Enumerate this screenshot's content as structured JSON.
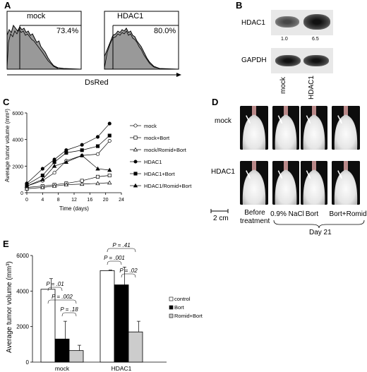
{
  "panel_letters": {
    "a": "A",
    "b": "B",
    "c": "C",
    "d": "D",
    "e": "E"
  },
  "panel_a": {
    "histograms": [
      {
        "name": "mock",
        "percent": "73.4%"
      },
      {
        "name": "HDAC1",
        "percent": "80.0%"
      }
    ],
    "xlabel": "DsRed"
  },
  "panel_b": {
    "blots": [
      {
        "name": "HDAC1",
        "quant": [
          "1.0",
          "6.5"
        ]
      },
      {
        "name": "GAPDH"
      }
    ],
    "lanes": [
      "mock",
      "HDAC1"
    ]
  },
  "panel_d": {
    "rows": [
      "mock",
      "HDAC1"
    ],
    "scale": "2 cm",
    "col_before": "Before\ntreatment",
    "cols_day": [
      "0.9% NaCl",
      "Bort",
      "Bort+Romid"
    ],
    "day_label": "Day 21"
  },
  "chart_data": [
    {
      "type": "line",
      "ylabel": "Average tumor volume (mm³)",
      "xlabel": "Time (days)",
      "xlim": [
        0,
        24
      ],
      "ylim": [
        0,
        6000
      ],
      "xticks": [
        0,
        4,
        8,
        12,
        16,
        20,
        24
      ],
      "yticks": [
        0,
        2000,
        4000,
        6000
      ],
      "series": [
        {
          "name": "mock",
          "marker": "open-circle",
          "x": [
            0,
            4,
            7,
            10,
            14,
            18,
            21
          ],
          "y": [
            500,
            900,
            1500,
            2400,
            2800,
            2900,
            3900
          ]
        },
        {
          "name": "mock+Bort",
          "marker": "open-square",
          "x": [
            0,
            4,
            7,
            10,
            14,
            18,
            21
          ],
          "y": [
            400,
            500,
            600,
            700,
            900,
            1200,
            1300
          ]
        },
        {
          "name": "mock/Romid+Bort",
          "marker": "open-triangle",
          "x": [
            0,
            4,
            7,
            10,
            14,
            18,
            21
          ],
          "y": [
            300,
            400,
            500,
            600,
            650,
            700,
            750
          ]
        },
        {
          "name": "HDAC1",
          "marker": "filled-circle",
          "x": [
            0,
            4,
            7,
            10,
            14,
            18,
            21
          ],
          "y": [
            700,
            1800,
            2500,
            3200,
            3600,
            4200,
            5200
          ]
        },
        {
          "name": "HDAC1+Bort",
          "marker": "filled-square",
          "x": [
            0,
            4,
            7,
            10,
            14,
            18,
            21
          ],
          "y": [
            600,
            1300,
            2300,
            3000,
            3200,
            3500,
            4300
          ]
        },
        {
          "name": "HDAC1/Romid+Bort",
          "marker": "filled-triangle",
          "x": [
            0,
            4,
            7,
            10,
            14,
            18,
            21
          ],
          "y": [
            500,
            1000,
            2000,
            2300,
            2800,
            1800,
            1700
          ]
        }
      ]
    },
    {
      "type": "bar",
      "ylabel": "Average tumor volume (mm³)",
      "categories": [
        "mock",
        "HDAC1"
      ],
      "ylim": [
        0,
        6000
      ],
      "yticks": [
        0,
        2000,
        4000,
        6000
      ],
      "series": [
        {
          "name": "control",
          "color": "#ffffff",
          "values": [
            4100,
            5150
          ],
          "errors": [
            600,
            30
          ]
        },
        {
          "name": "Bort",
          "color": "#000000",
          "values": [
            1300,
            4350
          ],
          "errors": [
            1000,
            1000
          ]
        },
        {
          "name": "Romid+Bort",
          "color": "#cccccc",
          "values": [
            650,
            1700
          ],
          "errors": [
            300,
            600
          ]
        }
      ],
      "annotations": [
        {
          "group": "mock",
          "between": [
            "control",
            "Bort"
          ],
          "text": "P = .01"
        },
        {
          "group": "mock",
          "between": [
            "control",
            "Romid+Bort"
          ],
          "text": "P = .002"
        },
        {
          "group": "mock",
          "between": [
            "Bort",
            "Romid+Bort"
          ],
          "text": "P = .18"
        },
        {
          "group": "HDAC1",
          "between": [
            "control",
            "Romid+Bort"
          ],
          "text": "P = .41"
        },
        {
          "group": "HDAC1",
          "between": [
            "control",
            "Bort"
          ],
          "text": "P = .001"
        },
        {
          "group": "HDAC1",
          "between": [
            "Bort",
            "Romid+Bort"
          ],
          "text": "P = .02"
        }
      ]
    }
  ]
}
